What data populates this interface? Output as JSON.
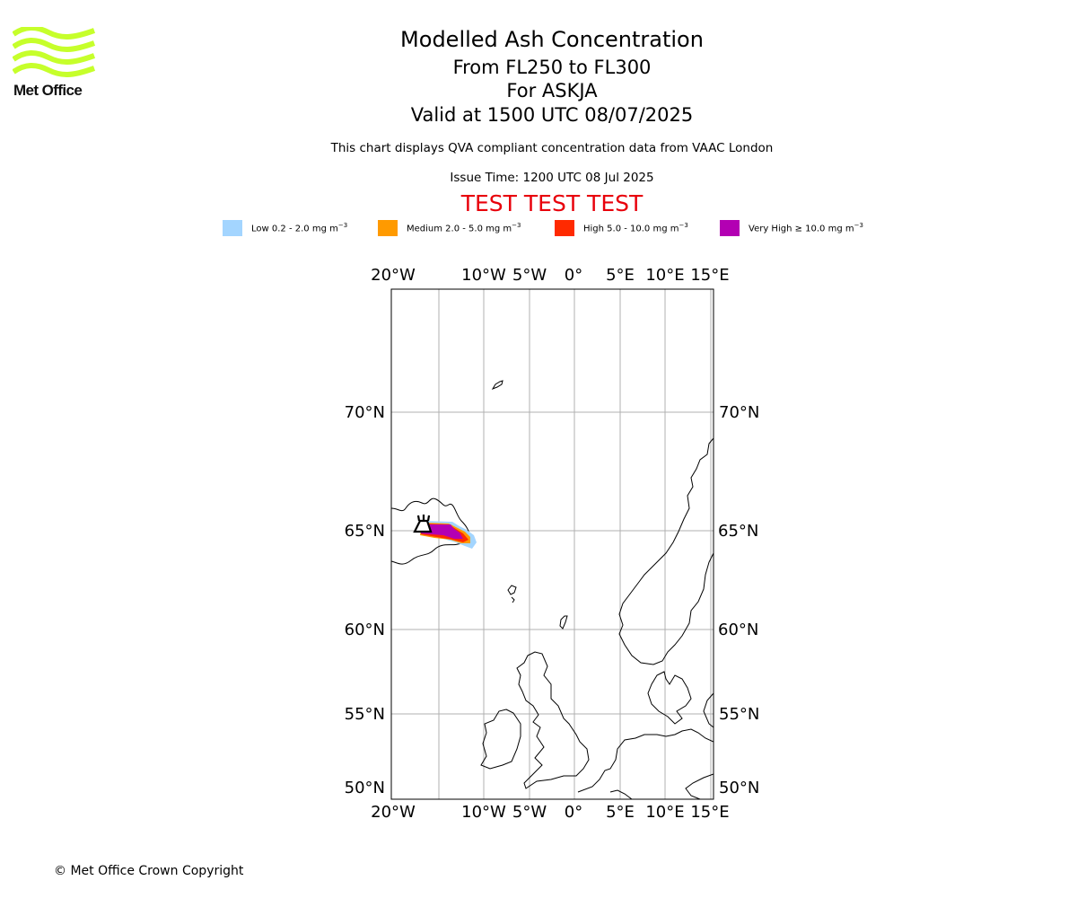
{
  "logo": {
    "text": "Met Office",
    "color": "#c6ff2b"
  },
  "header": {
    "title": "Modelled Ash Concentration",
    "levels": "From FL250 to FL300",
    "volcano": "For ASKJA",
    "valid": "Valid at 1500 UTC 08/07/2025",
    "description": "This chart displays QVA compliant concentration data from VAAC London",
    "issue_time": "Issue Time: 1200 UTC 08 Jul 2025",
    "test_banner": "TEST TEST TEST"
  },
  "legend": [
    {
      "label": "Low 0.2 - 2.0 mg m",
      "unit_exp": "−3",
      "color": "#a3d5ff"
    },
    {
      "label": "Medium 2.0 - 5.0 mg m",
      "unit_exp": "−3",
      "color": "#ff9a00"
    },
    {
      "label": "High 5.0 - 10.0 mg m",
      "unit_exp": "−3",
      "color": "#ff2a00"
    },
    {
      "label": "Very High  ≥  10.0 mg m",
      "unit_exp": "−3",
      "color": "#b300b3"
    }
  ],
  "map": {
    "lon_labels": [
      "20°W",
      "10°W",
      "5°W",
      "0°",
      "5°E",
      "10°E",
      "15°E"
    ],
    "lat_labels": [
      "70°N",
      "65°N",
      "60°N",
      "55°N",
      "50°N"
    ],
    "gridline_color": "#b0b0b0",
    "volcano_icon": "volcano-icon"
  },
  "footer": {
    "copyright": "© Met Office Crown Copyright"
  }
}
